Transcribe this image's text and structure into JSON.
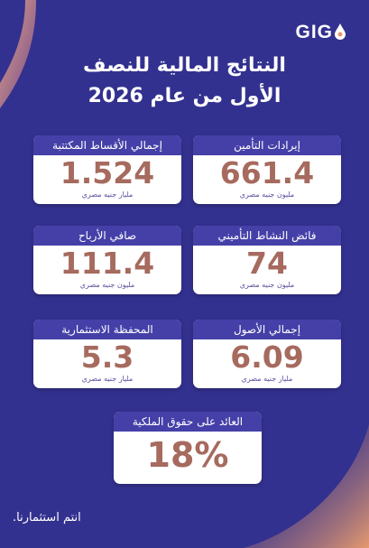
{
  "header": {
    "logo": "GIG",
    "title_line1": "النتائج المالية للنصف",
    "title_line2": "الأول من عام 2026"
  },
  "cards": [
    {
      "label": "إيرادات التأمين",
      "value": "661.4",
      "unit": "مليون جنيه مصري"
    },
    {
      "label": "إجمالي الأقساط المكتتبة",
      "value": "1.524",
      "unit": "مليار جنيه مصري"
    },
    {
      "label": "فائض النشاط التأميني",
      "value": "74",
      "unit": "مليون جنيه مصري"
    },
    {
      "label": "صافي الأرباح",
      "value": "111.4",
      "unit": "مليون جنيه مصري"
    },
    {
      "label": "إجمالي الأصول",
      "value": "6.09",
      "unit": "مليار جنيه مصري"
    },
    {
      "label": "المحفظة الاستثمارية",
      "value": "5.3",
      "unit": "مليار جنيه مصري"
    },
    {
      "label": "العائد على حقوق الملكية",
      "value": "18%"
    }
  ],
  "footer": "انتم استثمارنا."
}
